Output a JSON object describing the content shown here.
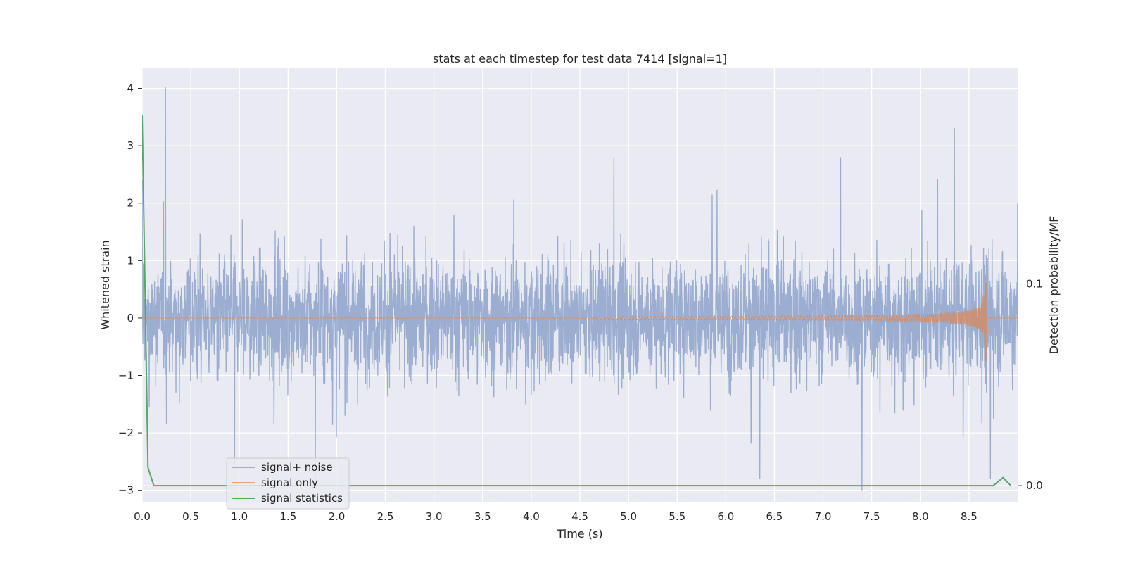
{
  "chart_data": {
    "type": "line",
    "title": "stats at each timestep for test data 7414 [signal=1]",
    "xlabel": "Time (s)",
    "ylabel": "Whitened strain",
    "y2label": "Detection probability/MF",
    "xlim": [
      0.0,
      9.0
    ],
    "ylim": [
      -3.2,
      4.35
    ],
    "y2lim": [
      -0.008,
      0.207
    ],
    "xticks": [
      "0.0",
      "0.5",
      "1.0",
      "1.5",
      "2.0",
      "2.5",
      "3.0",
      "3.5",
      "4.0",
      "4.5",
      "5.0",
      "5.5",
      "6.0",
      "6.5",
      "7.0",
      "7.5",
      "8.0",
      "8.5"
    ],
    "yticks": [
      "−3",
      "−2",
      "−1",
      "0",
      "1",
      "2",
      "3",
      "4"
    ],
    "y2ticks": [
      "0.0",
      "0.1"
    ],
    "grid": true,
    "legend_position": "lower-left",
    "series": [
      {
        "name": "signal+ noise",
        "color": "#4c72b0",
        "axis": "left",
        "description_values": {
          "points": [
            [
              0.0,
              2.4
            ],
            [
              0.24,
              4.02
            ],
            [
              0.95,
              -2.55
            ],
            [
              1.78,
              -2.85
            ],
            [
              4.85,
              2.8
            ],
            [
              6.35,
              -2.8
            ],
            [
              7.18,
              2.8
            ],
            [
              7.4,
              -3.0
            ],
            [
              8.72,
              -2.8
            ],
            [
              9.0,
              2.0
            ]
          ],
          "typical_range": [
            -1.4,
            1.4
          ]
        }
      },
      {
        "name": "signal only",
        "color": "#dd8452",
        "axis": "left",
        "description_values": {
          "chirp_start": 4.3,
          "peak_time": 8.68,
          "peak_amplitude": 0.62,
          "min_amplitude": -0.75
        }
      },
      {
        "name": "signal statistics",
        "color": "#55a868",
        "axis": "right",
        "points": [
          [
            0.0,
            0.184
          ],
          [
            0.06,
            0.009
          ],
          [
            0.12,
            0.0
          ],
          [
            8.75,
            0.0
          ],
          [
            8.85,
            0.004
          ],
          [
            8.93,
            0.0
          ]
        ]
      }
    ]
  }
}
